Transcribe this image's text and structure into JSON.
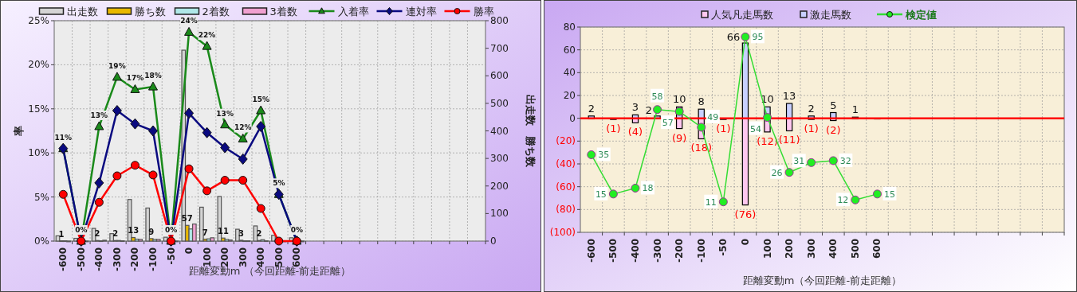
{
  "chart_data": [
    {
      "type": "bar",
      "xlabel": "距離変動m （今回距離-前走距離）",
      "ylabel": "率",
      "y2label": "出走数　勝ち数",
      "legend": "top",
      "grid": true,
      "categories": [
        "-600",
        "-500",
        "-400",
        "-300",
        "-200",
        "-100",
        "-50",
        "0",
        "100",
        "200",
        "300",
        "400",
        "500",
        "600",
        null,
        null,
        null,
        null,
        null,
        null,
        null,
        null,
        null,
        null
      ],
      "ylim": [
        0,
        25
      ],
      "yticks": [
        {
          "value": 0,
          "label": "0%"
        },
        {
          "value": 5,
          "label": "5%"
        },
        {
          "value": 10,
          "label": "10%"
        },
        {
          "value": 15,
          "label": "15%"
        },
        {
          "value": 20,
          "label": "20%"
        },
        {
          "value": 25,
          "label": "25%"
        }
      ],
      "y2lim": [
        0,
        800
      ],
      "y2ticks": [
        0,
        100,
        200,
        300,
        400,
        500,
        600,
        700,
        800
      ],
      "series": [
        {
          "name": "出走数",
          "axis": "y2",
          "color": "#d4d4d4",
          "values": [
            19,
            10,
            46,
            27,
            151,
            120,
            14,
            693,
            123,
            162,
            43,
            55,
            21,
            12,
            null,
            null,
            null,
            null,
            null,
            null,
            null,
            null,
            null,
            null
          ]
        },
        {
          "name": "勝ち数",
          "axis": "y2",
          "color": "#e8b800",
          "values": [
            1,
            0,
            2,
            2,
            13,
            9,
            0,
            57,
            7,
            11,
            3,
            2,
            0,
            0,
            null,
            null,
            null,
            null,
            null,
            null,
            null,
            null,
            null,
            null
          ],
          "value_labels": [
            "1",
            null,
            "2",
            "2",
            "13",
            "9",
            null,
            "57",
            "7",
            "11",
            "3",
            "2",
            null,
            null,
            null,
            null,
            null,
            null,
            null,
            null,
            null,
            null,
            null,
            null
          ]
        },
        {
          "name": "2着数",
          "axis": "y2",
          "color": "#b0e8e8",
          "values": [
            1,
            0,
            1,
            2,
            7,
            6,
            0,
            44,
            8,
            6,
            1,
            5,
            1,
            0,
            null,
            null,
            null,
            null,
            null,
            null,
            null,
            null,
            null,
            null
          ]
        },
        {
          "name": "3着数",
          "axis": "y2",
          "color": "#f0a0d0",
          "values": [
            0,
            0,
            3,
            1,
            6,
            6,
            0,
            62,
            12,
            4,
            1,
            1,
            0,
            0,
            null,
            null,
            null,
            null,
            null,
            null,
            null,
            null,
            null,
            null
          ]
        },
        {
          "name": "入着率",
          "type": "line",
          "marker": "triangle",
          "color": "#1a8a1a",
          "values": [
            10.5,
            0,
            13.0,
            18.6,
            17.2,
            17.5,
            0,
            23.7,
            22.1,
            13.2,
            11.6,
            14.8,
            5.3,
            0,
            null,
            null,
            null,
            null,
            null,
            null,
            null,
            null,
            null,
            null
          ],
          "value_labels": [
            "11%",
            "0%",
            "13%",
            "19%",
            "17%",
            "18%",
            "0%",
            "24%",
            "22%",
            "13%",
            "12%",
            "15%",
            "5%",
            "0%",
            null,
            null,
            null,
            null,
            null,
            null,
            null,
            null,
            null,
            null
          ]
        },
        {
          "name": "連対率",
          "type": "line",
          "marker": "diamond",
          "color": "#0a0a80",
          "values": [
            10.5,
            0,
            6.6,
            14.8,
            13.3,
            12.5,
            0,
            14.5,
            12.3,
            10.6,
            9.3,
            13.0,
            5.3,
            0,
            null,
            null,
            null,
            null,
            null,
            null,
            null,
            null,
            null,
            null
          ]
        },
        {
          "name": "勝率",
          "type": "line",
          "marker": "circle",
          "color": "#ff0000",
          "values": [
            5.3,
            0,
            4.4,
            7.4,
            8.6,
            7.5,
            0,
            8.2,
            5.7,
            6.9,
            6.9,
            3.7,
            0,
            0,
            null,
            null,
            null,
            null,
            null,
            null,
            null,
            null,
            null,
            null
          ]
        }
      ]
    },
    {
      "type": "bar",
      "stacked": true,
      "xlabel": "距離変動m（今回距離-前走距離）",
      "legend": "top",
      "grid": true,
      "categories": [
        "-600",
        "-500",
        "-400",
        "-300",
        "-200",
        "-100",
        "-50",
        "0",
        "100",
        "200",
        "300",
        "400",
        "500",
        "600",
        null,
        null,
        null,
        null,
        null,
        null,
        null,
        null
      ],
      "ylim": [
        -100,
        80
      ],
      "y2lim": [
        -4.5,
        100
      ],
      "yticks": [
        {
          "value": -100,
          "label": "(100)"
        },
        {
          "value": -80,
          "label": "(80)"
        },
        {
          "value": -60,
          "label": "(60)"
        },
        {
          "value": -40,
          "label": "(40)"
        },
        {
          "value": -20,
          "label": "(20)"
        },
        0,
        20,
        40,
        60,
        80
      ],
      "ref_lines": [
        {
          "axis": "y",
          "value": 0,
          "color": "#ff0000"
        }
      ],
      "series": [
        {
          "name": "人気凡走馬数",
          "color": "#ffc8f0",
          "values": [
            0,
            -1,
            -4,
            null,
            -9,
            -18,
            -1,
            -76,
            -12,
            -11,
            -1,
            -2,
            0,
            0,
            null,
            null,
            null,
            null,
            null,
            null,
            null,
            null
          ],
          "value_labels": [
            null,
            "(1)",
            "(4)",
            null,
            "(9)",
            "(18)",
            "(1)",
            "(76)",
            "(12)",
            "(11)",
            "(1)",
            "(2)",
            null,
            null,
            null,
            null,
            null,
            null,
            null,
            null,
            null,
            null
          ]
        },
        {
          "name": "激走馬数",
          "color": "#c8d0ff",
          "values": [
            2,
            0,
            3,
            2,
            10,
            8,
            0,
            66,
            10,
            13,
            2,
            5,
            1,
            0,
            null,
            null,
            null,
            null,
            null,
            null,
            null,
            null
          ],
          "value_labels": [
            "2",
            null,
            "3",
            "2",
            "10",
            "8",
            null,
            "66",
            "10",
            "13",
            "2",
            "5",
            "1",
            null,
            null,
            null,
            null,
            null,
            null,
            null,
            null,
            null
          ]
        },
        {
          "name": "検定値",
          "type": "line",
          "axis": "y2",
          "marker": "circle",
          "color": "#33dd33",
          "values": [
            35,
            15,
            18,
            58,
            57,
            49,
            11,
            95,
            54,
            26,
            31,
            32,
            12,
            15,
            null,
            null,
            null,
            null,
            null,
            null,
            null,
            null
          ],
          "value_labels": [
            "35",
            "15",
            "18",
            "58",
            "57",
            "49",
            "11",
            "95",
            "54",
            "26",
            "31",
            "32",
            "12",
            "15",
            null,
            null,
            null,
            null,
            null,
            null,
            null,
            null
          ]
        }
      ]
    }
  ]
}
